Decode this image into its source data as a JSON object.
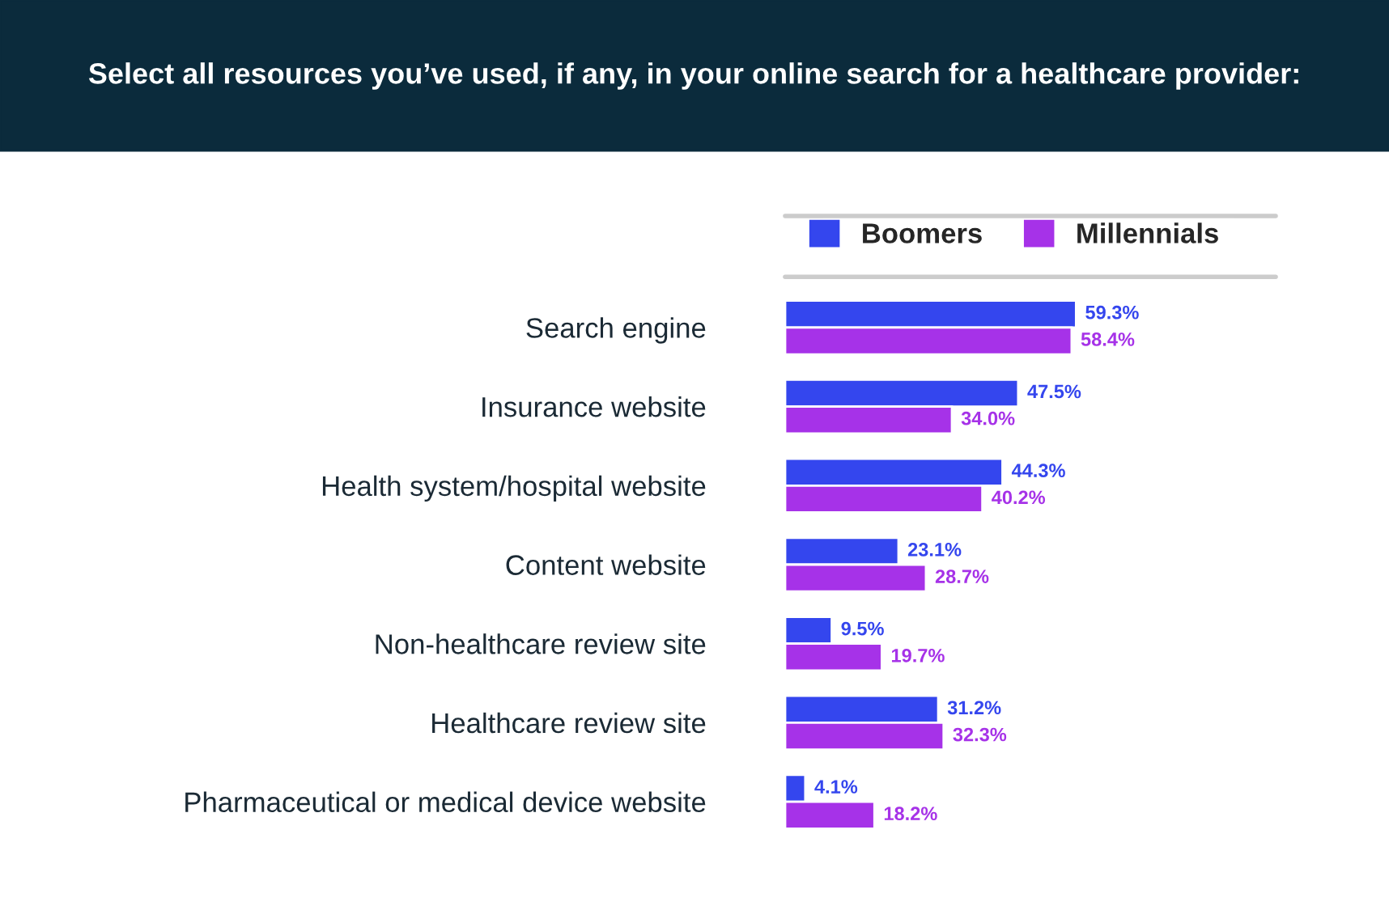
{
  "chart_data": {
    "type": "bar",
    "orientation": "horizontal",
    "title": "Select all resources you’ve used, if any, in your online search for a healthcare provider:",
    "categories": [
      "Search engine",
      "Insurance website",
      "Health system/hospital website",
      "Content website",
      "Non-healthcare review site",
      "Healthcare review site",
      "Pharmaceutical or medical device website"
    ],
    "series": [
      {
        "name": "Boomers",
        "color": "#3446ee",
        "values": [
          59.3,
          47.5,
          44.3,
          23.1,
          9.5,
          31.2,
          4.1
        ],
        "value_labels": [
          "59.3%",
          "47.5%",
          "44.3%",
          "23.1%",
          "9.5%",
          "31.2%",
          "4.1%"
        ]
      },
      {
        "name": "Millennials",
        "color": "#a632e8",
        "values": [
          58.4,
          34.0,
          40.2,
          28.7,
          19.7,
          32.3,
          18.2
        ],
        "value_labels": [
          "58.4%",
          "34.0%",
          "40.2%",
          "28.7%",
          "19.7%",
          "32.3%",
          "18.2%"
        ]
      }
    ],
    "xlim": [
      0,
      100
    ],
    "tick_labels": "y",
    "legend": "top left",
    "grid": false
  }
}
